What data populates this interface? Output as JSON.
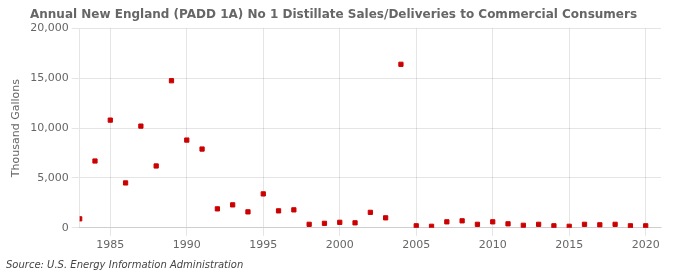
{
  "chart_data": {
    "type": "scatter",
    "title": "Annual New England (PADD 1A) No 1 Distillate Sales/Deliveries to Commercial Consumers",
    "ylabel": "Thousand Gallons",
    "annotation": "Source: U.S. Energy Information Administration",
    "x": [
      1983,
      1984,
      1985,
      1986,
      1987,
      1988,
      1989,
      1990,
      1991,
      1992,
      1993,
      1994,
      1995,
      1996,
      1997,
      1998,
      1999,
      2000,
      2001,
      2002,
      2003,
      2004,
      2005,
      2006,
      2007,
      2008,
      2009,
      2010,
      2011,
      2012,
      2013,
      2014,
      2015,
      2016,
      2017,
      2018,
      2019,
      2020
    ],
    "values": [
      900,
      6700,
      10800,
      4500,
      10200,
      6200,
      14750,
      8800,
      7900,
      1900,
      2300,
      1600,
      3400,
      1700,
      1800,
      350,
      450,
      550,
      500,
      1550,
      1000,
      16400,
      200,
      150,
      600,
      700,
      350,
      600,
      400,
      250,
      350,
      200,
      150,
      350,
      300,
      350,
      200,
      200
    ],
    "color": "#cc0000",
    "marker": "square",
    "xlim": [
      1983,
      2021
    ],
    "xticks": [
      1985,
      1990,
      1995,
      2000,
      2005,
      2010,
      2015,
      2020
    ],
    "ylim": [
      0,
      20000
    ],
    "yticks": [
      0,
      {
        "value": 5000,
        "label": "5,000"
      },
      {
        "value": 10000,
        "label": "10,000"
      },
      {
        "value": 15000,
        "label": "15,000"
      },
      {
        "value": 20000,
        "label": "20,000"
      }
    ],
    "grid": true
  }
}
